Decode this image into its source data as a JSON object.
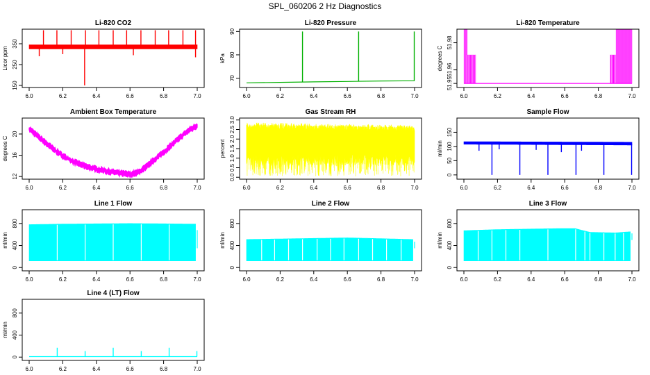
{
  "figure_title": "SPL_060206  2 Hz Diagnostics",
  "colors": {
    "co2": "#ff0000",
    "pressure": "#00b000",
    "temperature": "#ff00ff",
    "ambient": "#ff00ff",
    "rh": "#ffff00",
    "sample_flow": "#0000ff",
    "line_flow": "#00ffff"
  },
  "chart_data": [
    {
      "id": "co2",
      "type": "line",
      "title": "Li-820 CO2",
      "ylabel": "Licor ppm",
      "xlim": [
        6.0,
        7.0
      ],
      "ylim": [
        140,
        420
      ],
      "xticks": [
        "6.0",
        "6.2",
        "6.4",
        "6.6",
        "6.8",
        "7.0"
      ],
      "yticks": [
        150,
        250,
        350
      ],
      "color_key": "co2",
      "band": {
        "x": [
          6.0,
          7.0
        ],
        "lo": [
          325,
          325
        ],
        "hi": [
          345,
          345
        ]
      },
      "spikes": [
        {
          "x": 6.085,
          "to": 415
        },
        {
          "x": 6.165,
          "to": 415
        },
        {
          "x": 6.25,
          "to": 415
        },
        {
          "x": 6.33,
          "to": 150
        },
        {
          "x": 6.335,
          "to": 415
        },
        {
          "x": 6.415,
          "to": 415
        },
        {
          "x": 6.5,
          "to": 415
        },
        {
          "x": 6.58,
          "to": 415
        },
        {
          "x": 6.665,
          "to": 415
        },
        {
          "x": 6.75,
          "to": 415
        },
        {
          "x": 6.83,
          "to": 415
        },
        {
          "x": 6.915,
          "to": 415
        },
        {
          "x": 6.99,
          "to": 415
        },
        {
          "x": 6.06,
          "to": 290
        },
        {
          "x": 6.2,
          "to": 300
        },
        {
          "x": 6.62,
          "to": 295
        },
        {
          "x": 6.99,
          "to": 285
        }
      ]
    },
    {
      "id": "pressure",
      "type": "line",
      "title": "Li-820 Pressure",
      "ylabel": "kPa",
      "xlim": [
        6.0,
        7.0
      ],
      "ylim": [
        66,
        91
      ],
      "xticks": [
        "6.0",
        "6.2",
        "6.4",
        "6.6",
        "6.8",
        "7.0"
      ],
      "yticks": [
        70,
        80,
        90
      ],
      "color_key": "pressure",
      "series": {
        "x": [
          6.0,
          6.2,
          6.4,
          6.6,
          6.8,
          7.0
        ],
        "y": [
          68.0,
          68.2,
          68.4,
          68.6,
          68.8,
          68.9
        ]
      },
      "spikes": [
        {
          "x": 6.333,
          "to": 90
        },
        {
          "x": 6.667,
          "to": 90
        },
        {
          "x": 6.998,
          "to": 90
        }
      ]
    },
    {
      "id": "temperature",
      "type": "line",
      "title": "Li-820 Temperature",
      "ylabel": "degrees C",
      "xlim": [
        6.0,
        7.0
      ],
      "ylim": [
        51.947,
        51.99
      ],
      "xticks": [
        "6.0",
        "6.2",
        "6.4",
        "6.6",
        "6.8",
        "7.0"
      ],
      "yticks": [
        "51.95",
        "51.96",
        "51.98"
      ],
      "ytick_values": [
        51.95,
        51.96,
        51.98
      ],
      "color_key": "temperature",
      "blocks": [
        {
          "x0": 6.0,
          "x1": 6.02,
          "lo": 51.95,
          "hi": 51.99
        },
        {
          "x0": 6.02,
          "x1": 6.07,
          "lo": 51.95,
          "hi": 51.971
        },
        {
          "x0": 6.87,
          "x1": 6.905,
          "lo": 51.95,
          "hi": 51.971
        },
        {
          "x0": 6.905,
          "x1": 7.0,
          "lo": 51.95,
          "hi": 51.99
        }
      ],
      "baseline": 51.95
    },
    {
      "id": "ambient",
      "type": "line",
      "title": "Ambient Box Temperature",
      "ylabel": "degrees C",
      "xlim": [
        6.0,
        7.0
      ],
      "ylim": [
        11.5,
        23
      ],
      "xticks": [
        "6.0",
        "6.2",
        "6.4",
        "6.6",
        "6.8",
        "7.0"
      ],
      "yticks": [
        12,
        16,
        20
      ],
      "color_key": "ambient",
      "series": {
        "x": [
          6.0,
          6.05,
          6.1,
          6.15,
          6.2,
          6.25,
          6.3,
          6.35,
          6.4,
          6.45,
          6.5,
          6.55,
          6.6,
          6.65,
          6.7,
          6.75,
          6.8,
          6.85,
          6.9,
          6.95,
          7.0
        ],
        "y": [
          21.0,
          19.6,
          18.3,
          17.0,
          15.9,
          15.0,
          14.3,
          13.8,
          13.4,
          13.1,
          12.8,
          12.6,
          12.4,
          12.8,
          13.9,
          15.3,
          16.6,
          18.0,
          19.4,
          20.7,
          21.6
        ]
      },
      "spread": 0.8
    },
    {
      "id": "rh",
      "type": "line",
      "title": "Gas Stream RH",
      "ylabel": "percent",
      "xlim": [
        6.0,
        7.0
      ],
      "ylim": [
        -0.1,
        3.1
      ],
      "xticks": [
        "6.0",
        "6.2",
        "6.4",
        "6.6",
        "6.8",
        "7.0"
      ],
      "yticks": [
        "0.0",
        "0.5",
        "1.0",
        "1.5",
        "2.0",
        "2.5",
        "3.0"
      ],
      "ytick_values": [
        0.0,
        0.5,
        1.0,
        1.5,
        2.0,
        2.5,
        3.0
      ],
      "color_key": "rh",
      "band": {
        "x": [
          6.0,
          7.0
        ],
        "lo": [
          0.9,
          0.9
        ],
        "hi": [
          2.75,
          2.6
        ]
      },
      "dips_to": 0.05
    },
    {
      "id": "sample_flow",
      "type": "line",
      "title": "Sample Flow",
      "ylabel": "ml/min",
      "xlim": [
        6.0,
        7.0
      ],
      "ylim": [
        -15,
        200
      ],
      "xticks": [
        "6.0",
        "6.2",
        "6.4",
        "6.6",
        "6.8",
        "7.0"
      ],
      "yticks": [
        0,
        50,
        100,
        150
      ],
      "color_key": "sample_flow",
      "band": {
        "x": [
          6.0,
          7.0
        ],
        "lo": [
          108,
          105
        ],
        "hi": [
          117,
          115
        ]
      },
      "spikes": [
        {
          "x": 6.167,
          "to": 0
        },
        {
          "x": 6.333,
          "to": 0
        },
        {
          "x": 6.5,
          "to": 0
        },
        {
          "x": 6.667,
          "to": 0
        },
        {
          "x": 6.833,
          "to": 0
        },
        {
          "x": 6.998,
          "to": 0
        },
        {
          "x": 6.09,
          "to": 85
        },
        {
          "x": 6.21,
          "to": 90
        },
        {
          "x": 6.43,
          "to": 88
        },
        {
          "x": 6.58,
          "to": 80
        },
        {
          "x": 6.7,
          "to": 85
        }
      ]
    },
    {
      "id": "line1",
      "type": "line",
      "title": "Line 1 Flow",
      "ylabel": "ml/min",
      "xlim": [
        6.0,
        7.0
      ],
      "ylim": [
        -60,
        1050
      ],
      "xticks": [
        "6.0",
        "6.2",
        "6.4",
        "6.6",
        "6.8",
        "7.0"
      ],
      "yticks": [
        0,
        400,
        800
      ],
      "color_key": "line_flow",
      "band": {
        "x": [
          6.0,
          6.2,
          6.4,
          6.6,
          6.8,
          6.99
        ],
        "lo": [
          120,
          120,
          120,
          120,
          120,
          120
        ],
        "hi": [
          780,
          790,
          795,
          800,
          795,
          790
        ]
      },
      "gaps": [
        6.167,
        6.333,
        6.5,
        6.667,
        6.833
      ],
      "tail": {
        "x": 7.0,
        "lo": 350,
        "hi": 680
      }
    },
    {
      "id": "line2",
      "type": "line",
      "title": "Line 2 Flow",
      "ylabel": "ml/min",
      "xlim": [
        6.0,
        7.0
      ],
      "ylim": [
        -60,
        1050
      ],
      "xticks": [
        "6.0",
        "6.2",
        "6.4",
        "6.6",
        "6.8",
        "7.0"
      ],
      "yticks": [
        0,
        400,
        800
      ],
      "color_key": "line_flow",
      "band": {
        "x": [
          6.0,
          6.2,
          6.4,
          6.6,
          6.8,
          6.99
        ],
        "lo": [
          120,
          120,
          120,
          120,
          120,
          120
        ],
        "hi": [
          510,
          520,
          530,
          540,
          525,
          510
        ]
      },
      "gaps": [
        6.09,
        6.167,
        6.25,
        6.333,
        6.42,
        6.5,
        6.58,
        6.667,
        6.75,
        6.833,
        6.92
      ],
      "tail": {
        "x": 7.0,
        "lo": 350,
        "hi": 470
      }
    },
    {
      "id": "line3",
      "type": "line",
      "title": "Line 3 Flow",
      "ylabel": "ml/min",
      "xlim": [
        6.0,
        7.0
      ],
      "ylim": [
        -60,
        1050
      ],
      "xticks": [
        "6.0",
        "6.2",
        "6.4",
        "6.6",
        "6.8",
        "7.0"
      ],
      "yticks": [
        0,
        400,
        800
      ],
      "color_key": "line_flow",
      "band": {
        "x": [
          6.0,
          6.2,
          6.4,
          6.6,
          6.66,
          6.75,
          6.9,
          6.99
        ],
        "lo": [
          120,
          120,
          120,
          120,
          120,
          120,
          120,
          120
        ],
        "hi": [
          670,
          690,
          700,
          710,
          710,
          640,
          630,
          650
        ]
      },
      "gaps": [
        6.085,
        6.167,
        6.25,
        6.333,
        6.5,
        6.665,
        6.72,
        6.75,
        6.833,
        6.9,
        6.95
      ],
      "tail": {
        "x": 7.0,
        "lo": 500,
        "hi": 620
      }
    },
    {
      "id": "line4",
      "type": "line",
      "title": "Line 4 (LT) Flow",
      "ylabel": "ml/min",
      "xlim": [
        6.0,
        7.0
      ],
      "ylim": [
        -60,
        1050
      ],
      "xticks": [
        "6.0",
        "6.2",
        "6.4",
        "6.6",
        "6.8",
        "7.0"
      ],
      "yticks": [
        0,
        400,
        800
      ],
      "color_key": "line_flow",
      "series": {
        "x": [
          6.0,
          7.0
        ],
        "y": [
          10,
          10
        ]
      },
      "spikes": [
        {
          "x": 6.167,
          "to": 170
        },
        {
          "x": 6.333,
          "to": 110
        },
        {
          "x": 6.5,
          "to": 170
        },
        {
          "x": 6.667,
          "to": 110
        },
        {
          "x": 6.833,
          "to": 170
        },
        {
          "x": 6.998,
          "to": 110
        }
      ]
    }
  ]
}
